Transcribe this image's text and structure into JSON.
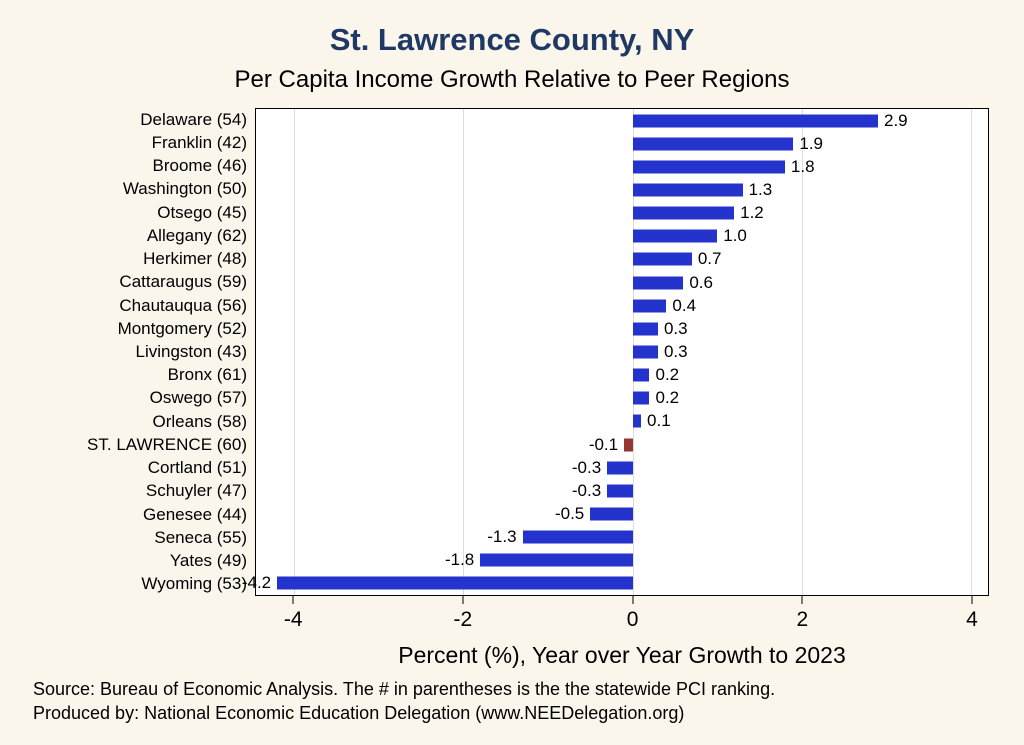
{
  "colors": {
    "bar": "#2433cc",
    "highlight_bar": "#943634",
    "title": "#1f3864",
    "background": "#faf6ec",
    "plot_background": "#ffffff",
    "gridline": "#dcdcdc"
  },
  "footer": {
    "source": "Source: Bureau of Economic Analysis. The # in parentheses is the the statewide PCI ranking.",
    "produced_by": "Produced by: National Economic Education Delegation (www.NEEDelegation.org)"
  },
  "chart_data": {
    "type": "bar",
    "orientation": "horizontal",
    "title": "St. Lawrence County, NY",
    "subtitle": "Per Capita Income Growth Relative to Peer Regions",
    "xlabel": "Percent (%), Year over Year Growth to 2023",
    "categories": [
      "Delaware (54)",
      "Franklin (42)",
      "Broome (46)",
      "Washington (50)",
      "Otsego (45)",
      "Allegany (62)",
      "Herkimer (48)",
      "Cattaraugus (59)",
      "Chautauqua (56)",
      "Montgomery (52)",
      "Livingston (43)",
      "Bronx (61)",
      "Oswego (57)",
      "Orleans (58)",
      "ST. LAWRENCE (60)",
      "Cortland (51)",
      "Schuyler (47)",
      "Genesee (44)",
      "Seneca (55)",
      "Yates (49)",
      "Wyoming (53)"
    ],
    "values": [
      2.9,
      1.9,
      1.8,
      1.3,
      1.2,
      1.0,
      0.7,
      0.6,
      0.4,
      0.3,
      0.3,
      0.2,
      0.2,
      0.1,
      -0.1,
      -0.3,
      -0.3,
      -0.5,
      -1.3,
      -1.8,
      -4.2
    ],
    "highlight_category": "ST. LAWRENCE (60)",
    "xlim": [
      -4.45,
      4.2
    ],
    "xticks": [
      -4,
      -2,
      0,
      2,
      4
    ],
    "grid": true,
    "legend": false
  }
}
